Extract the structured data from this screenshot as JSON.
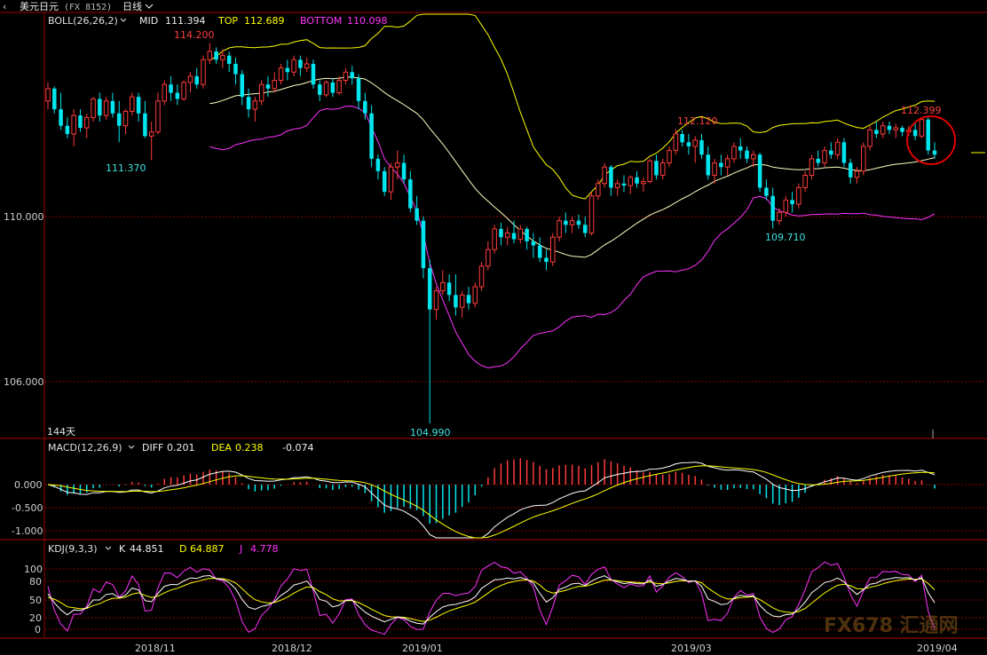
{
  "window": {
    "title": "美元日元",
    "code": "(FX 8152)",
    "period": "日线",
    "period_arrow": "chevron-down"
  },
  "colors": {
    "up": "#ff3b3b",
    "down": "#00e5ee",
    "mid": "#ffffc0",
    "top": "#ffff00",
    "bottom": "#ff33ff",
    "grid": "#8a0000",
    "axis_text": "#cfcfcf",
    "marker": "#e00000",
    "macd_line": "#ffffff",
    "dea_line": "#ffff00",
    "k_line": "#ffffff",
    "d_line": "#ffff00",
    "j_line": "#ff33ff"
  },
  "boll": {
    "label": "BOLL(26,26,2)",
    "mid_label": "MID",
    "mid": "111.394",
    "top_label": "TOP",
    "top": "112.689",
    "bottom_label": "BOTTOM",
    "bottom": "110.098"
  },
  "macd": {
    "label": "MACD(12,26,9)",
    "diff_label": "DIFF",
    "diff": "0.201",
    "dea_label": "DEA",
    "dea": "0.238",
    "macd": "-0.074"
  },
  "kdj": {
    "label": "KDJ(9,3,3)",
    "k_label": "K",
    "k": "44.851",
    "d_label": "D",
    "d": "64.887",
    "j_label": "J",
    "j": "4.778"
  },
  "bar_count": "144天",
  "watermark": "FX678 汇通网",
  "chart_data": {
    "type": "candlestick",
    "price_ticks": [
      "110.000",
      "106.000"
    ],
    "macd_ticks": [
      "0.000",
      "-0.500",
      "-1.000"
    ],
    "kdj_ticks": [
      "100",
      "80",
      "50",
      "20",
      "0"
    ],
    "date_labels": [
      "2018/11",
      "2018/12",
      "2019/01",
      "2019/03",
      "2019/04"
    ],
    "annotations": {
      "high_2018": "114.200",
      "low_2018_11": "111.370",
      "low_2019_01": "104.990",
      "high_2019_03": "112.120",
      "low_2019_03": "109.710",
      "high_2019_04": "112.399"
    },
    "ohlc": [
      [
        112.8,
        113.25,
        112.6,
        113.1
      ],
      [
        113.1,
        113.15,
        112.5,
        112.6
      ],
      [
        112.6,
        113.0,
        112.1,
        112.2
      ],
      [
        112.2,
        112.4,
        111.9,
        112.0
      ],
      [
        112.0,
        112.6,
        111.7,
        112.45
      ],
      [
        112.45,
        112.6,
        112.05,
        112.15
      ],
      [
        112.15,
        112.5,
        111.9,
        112.4
      ],
      [
        112.4,
        112.9,
        112.3,
        112.85
      ],
      [
        112.85,
        113.0,
        112.3,
        112.45
      ],
      [
        112.45,
        112.9,
        112.35,
        112.8
      ],
      [
        112.8,
        113.0,
        112.4,
        112.5
      ],
      [
        112.5,
        112.8,
        111.8,
        112.2
      ],
      [
        112.2,
        112.6,
        112.0,
        112.55
      ],
      [
        112.55,
        113.0,
        112.45,
        112.9
      ],
      [
        112.9,
        113.0,
        112.3,
        112.5
      ],
      [
        112.5,
        112.8,
        111.9,
        111.95
      ],
      [
        111.95,
        112.3,
        111.37,
        112.05
      ],
      [
        112.05,
        113.0,
        112.0,
        112.8
      ],
      [
        112.8,
        113.3,
        112.7,
        113.2
      ],
      [
        113.2,
        113.4,
        112.8,
        113.0
      ],
      [
        113.0,
        113.2,
        112.7,
        112.85
      ],
      [
        112.85,
        113.3,
        112.8,
        113.25
      ],
      [
        113.25,
        113.5,
        113.0,
        113.4
      ],
      [
        113.4,
        113.6,
        113.1,
        113.2
      ],
      [
        113.2,
        113.9,
        113.1,
        113.8
      ],
      [
        113.8,
        114.2,
        113.7,
        114.0
      ],
      [
        114.0,
        114.1,
        113.7,
        113.8
      ],
      [
        113.8,
        114.05,
        113.6,
        113.9
      ],
      [
        113.9,
        114.0,
        113.5,
        113.7
      ],
      [
        113.7,
        113.85,
        113.2,
        113.45
      ],
      [
        113.45,
        113.55,
        112.7,
        112.9
      ],
      [
        112.9,
        113.1,
        112.4,
        112.6
      ],
      [
        112.6,
        112.9,
        112.3,
        112.8
      ],
      [
        112.8,
        113.3,
        112.7,
        113.2
      ],
      [
        113.2,
        113.4,
        112.9,
        113.1
      ],
      [
        113.1,
        113.5,
        113.0,
        113.3
      ],
      [
        113.3,
        113.7,
        113.2,
        113.6
      ],
      [
        113.6,
        113.8,
        113.3,
        113.5
      ],
      [
        113.5,
        113.9,
        113.4,
        113.8
      ],
      [
        113.8,
        113.9,
        113.4,
        113.6
      ],
      [
        113.6,
        113.85,
        113.5,
        113.7
      ],
      [
        113.7,
        113.8,
        113.1,
        113.2
      ],
      [
        113.2,
        113.3,
        112.8,
        112.95
      ],
      [
        112.95,
        113.3,
        112.9,
        113.25
      ],
      [
        113.25,
        113.35,
        112.9,
        113.0
      ],
      [
        113.0,
        113.4,
        112.95,
        113.3
      ],
      [
        113.3,
        113.6,
        113.2,
        113.5
      ],
      [
        113.5,
        113.65,
        113.2,
        113.35
      ],
      [
        113.35,
        113.45,
        112.6,
        112.8
      ],
      [
        112.8,
        113.0,
        112.35,
        112.5
      ],
      [
        112.5,
        112.7,
        111.2,
        111.4
      ],
      [
        111.4,
        111.5,
        110.9,
        111.1
      ],
      [
        111.1,
        111.2,
        110.5,
        110.6
      ],
      [
        110.6,
        111.3,
        110.4,
        111.2
      ],
      [
        111.2,
        111.6,
        110.9,
        111.3
      ],
      [
        111.3,
        111.5,
        110.8,
        110.9
      ],
      [
        110.9,
        111.1,
        110.1,
        110.2
      ],
      [
        110.2,
        110.5,
        109.8,
        109.9
      ],
      [
        109.9,
        110.0,
        108.5,
        108.75
      ],
      [
        108.75,
        108.95,
        104.99,
        107.75
      ],
      [
        107.75,
        108.3,
        107.5,
        108.2
      ],
      [
        108.2,
        108.7,
        108.1,
        108.4
      ],
      [
        108.4,
        108.6,
        107.95,
        108.1
      ],
      [
        108.1,
        108.6,
        107.6,
        107.8
      ],
      [
        107.8,
        108.2,
        107.55,
        108.1
      ],
      [
        108.1,
        108.3,
        107.75,
        107.9
      ],
      [
        107.9,
        108.4,
        107.8,
        108.3
      ],
      [
        108.3,
        108.9,
        108.2,
        108.8
      ],
      [
        108.8,
        109.4,
        108.7,
        109.2
      ],
      [
        109.2,
        109.8,
        109.1,
        109.7
      ],
      [
        109.7,
        109.85,
        109.3,
        109.5
      ],
      [
        109.5,
        109.75,
        109.3,
        109.6
      ],
      [
        109.6,
        109.9,
        109.35,
        109.45
      ],
      [
        109.45,
        109.8,
        109.35,
        109.7
      ],
      [
        109.7,
        109.75,
        109.2,
        109.4
      ],
      [
        109.4,
        109.6,
        109.0,
        109.3
      ],
      [
        109.3,
        109.5,
        108.9,
        109.0
      ],
      [
        109.0,
        109.2,
        108.7,
        108.9
      ],
      [
        108.9,
        109.6,
        108.8,
        109.5
      ],
      [
        109.5,
        110.0,
        109.4,
        109.9
      ],
      [
        109.9,
        110.1,
        109.6,
        109.8
      ],
      [
        109.8,
        110.0,
        109.6,
        109.9
      ],
      [
        109.9,
        110.05,
        109.7,
        109.8
      ],
      [
        109.8,
        110.0,
        109.5,
        109.6
      ],
      [
        109.6,
        110.6,
        109.55,
        110.5
      ],
      [
        110.5,
        110.9,
        110.4,
        110.8
      ],
      [
        110.8,
        111.3,
        110.7,
        111.2
      ],
      [
        111.2,
        111.25,
        110.5,
        110.7
      ],
      [
        110.7,
        110.9,
        110.5,
        110.8
      ],
      [
        110.8,
        111.0,
        110.6,
        110.75
      ],
      [
        110.75,
        111.0,
        110.55,
        110.95
      ],
      [
        110.95,
        111.1,
        110.7,
        110.8
      ],
      [
        110.8,
        110.95,
        110.6,
        110.85
      ],
      [
        110.85,
        111.4,
        110.8,
        111.35
      ],
      [
        111.35,
        111.5,
        110.9,
        111.0
      ],
      [
        111.0,
        111.4,
        110.9,
        111.3
      ],
      [
        111.3,
        111.7,
        111.2,
        111.6
      ],
      [
        111.6,
        112.12,
        111.5,
        112.0
      ],
      [
        112.0,
        112.1,
        111.7,
        111.8
      ],
      [
        111.8,
        112.0,
        111.5,
        111.7
      ],
      [
        111.7,
        111.95,
        111.3,
        111.85
      ],
      [
        111.85,
        112.0,
        111.4,
        111.5
      ],
      [
        111.5,
        111.7,
        110.9,
        111.0
      ],
      [
        111.0,
        111.4,
        110.8,
        111.3
      ],
      [
        111.3,
        111.5,
        111.0,
        111.2
      ],
      [
        111.2,
        111.5,
        111.0,
        111.4
      ],
      [
        111.4,
        111.8,
        111.3,
        111.7
      ],
      [
        111.7,
        111.9,
        111.4,
        111.6
      ],
      [
        111.6,
        111.7,
        111.3,
        111.4
      ],
      [
        111.4,
        111.6,
        111.2,
        111.5
      ],
      [
        111.5,
        111.55,
        110.6,
        110.7
      ],
      [
        110.7,
        110.9,
        110.4,
        110.5
      ],
      [
        110.5,
        110.7,
        109.71,
        109.9
      ],
      [
        109.9,
        110.2,
        109.8,
        110.1
      ],
      [
        110.1,
        110.5,
        110.0,
        110.4
      ],
      [
        110.4,
        110.6,
        110.1,
        110.3
      ],
      [
        110.3,
        110.8,
        110.2,
        110.7
      ],
      [
        110.7,
        111.1,
        110.6,
        111.0
      ],
      [
        111.0,
        111.5,
        110.9,
        111.4
      ],
      [
        111.4,
        111.6,
        111.2,
        111.3
      ],
      [
        111.3,
        111.7,
        111.2,
        111.6
      ],
      [
        111.6,
        111.8,
        111.4,
        111.5
      ],
      [
        111.5,
        111.9,
        111.4,
        111.8
      ],
      [
        111.8,
        111.9,
        111.2,
        111.3
      ],
      [
        111.3,
        111.4,
        110.8,
        110.95
      ],
      [
        110.95,
        111.2,
        110.8,
        111.1
      ],
      [
        111.1,
        111.8,
        111.0,
        111.7
      ],
      [
        111.7,
        112.2,
        111.6,
        112.1
      ],
      [
        112.1,
        112.3,
        111.9,
        112.0
      ],
      [
        112.0,
        112.3,
        111.9,
        112.2
      ],
      [
        112.2,
        112.3,
        112.0,
        112.1
      ],
      [
        112.1,
        112.25,
        111.9,
        112.15
      ],
      [
        112.15,
        112.2,
        111.95,
        112.05
      ],
      [
        112.05,
        112.2,
        111.95,
        112.1
      ],
      [
        112.1,
        112.25,
        111.85,
        111.95
      ],
      [
        111.95,
        112.4,
        111.9,
        112.35
      ],
      [
        112.35,
        112.4,
        111.5,
        111.6
      ],
      [
        111.6,
        111.8,
        111.4,
        111.5
      ]
    ]
  }
}
